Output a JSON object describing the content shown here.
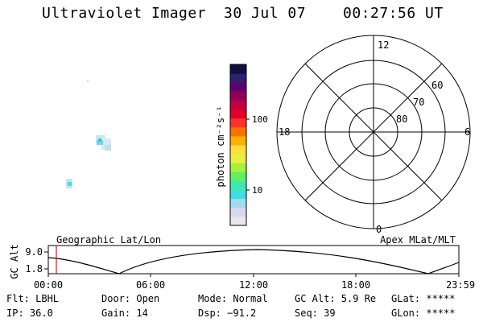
{
  "header": {
    "title": "Ultraviolet Imager",
    "date": "30 Jul 07",
    "time": "00:27:56 UT"
  },
  "colorbar": {
    "unit_label": "photon cm⁻²s⁻¹",
    "tick_labels": [
      "100",
      "10"
    ],
    "colors": [
      "#e8e8e8",
      "#d8d8f0",
      "#a0dcf0",
      "#40e0e0",
      "#40e8b0",
      "#60f060",
      "#a8f040",
      "#e8f040",
      "#ffe040",
      "#ffb000",
      "#ff7000",
      "#ff3030",
      "#e00028",
      "#c00040",
      "#900058",
      "#600070",
      "#302070",
      "#101040"
    ]
  },
  "polar_plot": {
    "mlt_labels": {
      "top": "12",
      "bottom": "0",
      "left": "18",
      "right": "6"
    },
    "lat_labels": [
      "60",
      "70",
      "80"
    ],
    "line_color": "#000000"
  },
  "timeline": {
    "y_axis_title": "GC Alt",
    "y_ticks": [
      "9.0",
      "1.8"
    ],
    "left_label": "Geographic Lat/Lon",
    "right_label": "Apex MLat/MLT",
    "x_ticks": [
      "00:00",
      "06:00",
      "12:00",
      "18:00",
      "23:59"
    ],
    "current_marker_color": "#ff0000"
  },
  "info": {
    "flt": "Flt: LBHL",
    "ip": "IP: 36.0",
    "door": "Door: Open",
    "gain": "Gain: 14",
    "mode": "Mode: Normal",
    "dsp": "Dsp:  −91.2",
    "gc_alt": "GC Alt: 5.9 Re",
    "seq": "Seq: 39",
    "glat": "GLat: *****",
    "glon": "GLon: *****"
  }
}
